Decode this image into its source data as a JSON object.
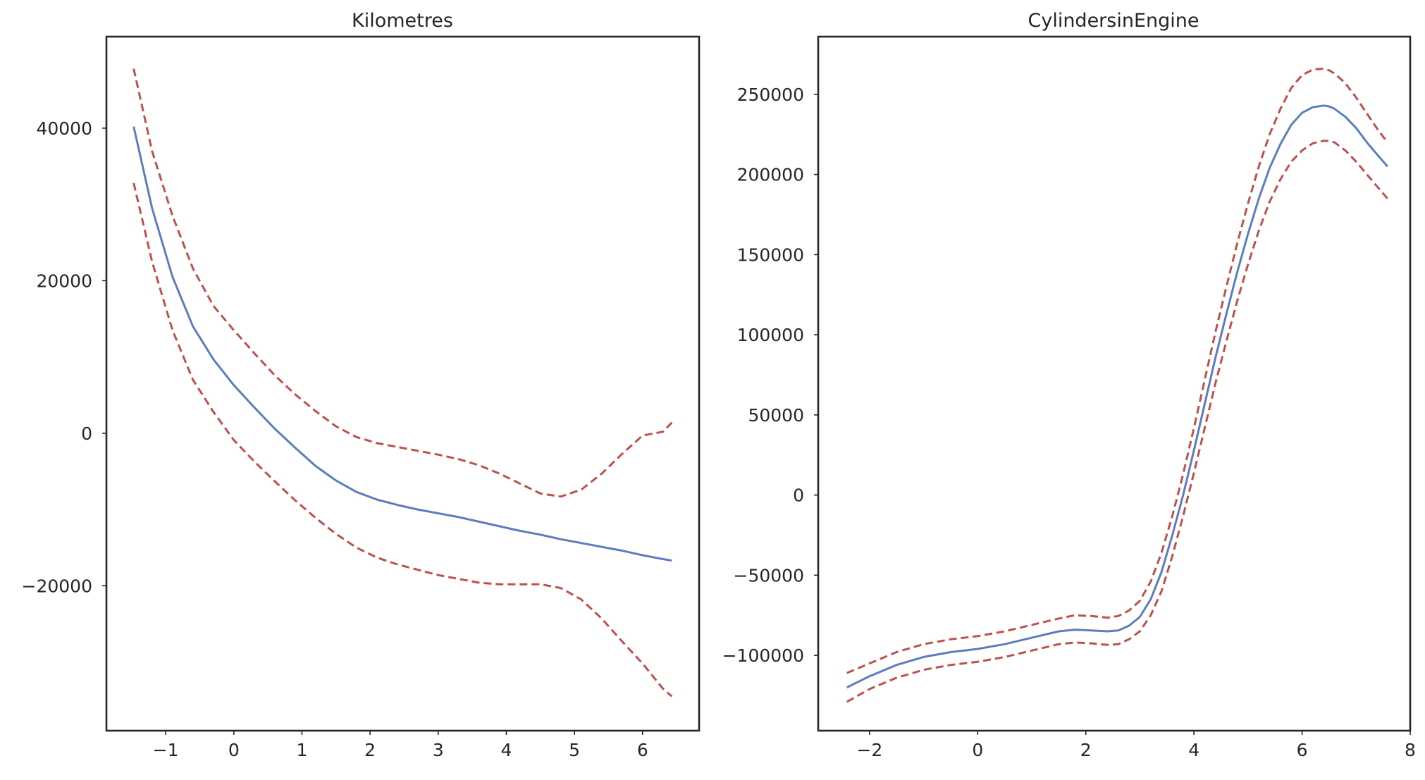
{
  "figure": {
    "fit_color": "#5c7dbf",
    "ci_color": "#c0504d"
  },
  "chart_data": [
    {
      "type": "line",
      "title": "Kilometres",
      "xlabel": "",
      "ylabel": "",
      "xlim": [
        -1.87,
        6.83
      ],
      "ylim": [
        -39000,
        52000
      ],
      "xticks": [
        -1,
        0,
        1,
        2,
        3,
        4,
        5,
        6
      ],
      "yticks": [
        -20000,
        0,
        20000,
        40000
      ],
      "xtick_labels": [
        "−1",
        "0",
        "1",
        "2",
        "3",
        "4",
        "5",
        "6"
      ],
      "ytick_labels": [
        "−20000",
        "0",
        "20000",
        "40000"
      ],
      "grid": false,
      "x": [
        -1.47,
        -1.2,
        -0.9,
        -0.6,
        -0.3,
        0.0,
        0.3,
        0.6,
        0.9,
        1.2,
        1.5,
        1.8,
        2.1,
        2.4,
        2.7,
        3.0,
        3.3,
        3.6,
        3.9,
        4.2,
        4.5,
        4.8,
        5.1,
        5.4,
        5.7,
        6.0,
        6.3,
        6.43
      ],
      "series": [
        {
          "role": "fit",
          "values": [
            40200,
            29500,
            20500,
            14000,
            9700,
            6300,
            3400,
            600,
            -1900,
            -4300,
            -6200,
            -7700,
            -8700,
            -9400,
            -10000,
            -10500,
            -11000,
            -11600,
            -12200,
            -12800,
            -13300,
            -13900,
            -14400,
            -14900,
            -15400,
            -16000,
            -16500,
            -16700
          ]
        },
        {
          "role": "upper",
          "values": [
            47800,
            37000,
            28500,
            21600,
            16700,
            13500,
            10500,
            7600,
            5100,
            2900,
            900,
            -500,
            -1300,
            -1800,
            -2300,
            -2800,
            -3400,
            -4200,
            -5300,
            -6600,
            -7900,
            -8300,
            -7400,
            -5300,
            -2700,
            -300,
            200,
            1400
          ]
        },
        {
          "role": "lower",
          "values": [
            32800,
            22500,
            13500,
            7000,
            2800,
            -900,
            -3700,
            -6300,
            -8800,
            -11100,
            -13200,
            -15000,
            -16300,
            -17200,
            -17900,
            -18600,
            -19100,
            -19600,
            -19800,
            -19800,
            -19800,
            -20300,
            -21800,
            -24300,
            -27300,
            -30200,
            -33500,
            -34500
          ]
        }
      ]
    },
    {
      "type": "line",
      "title": "CylindersinEngine",
      "xlabel": "",
      "ylabel": "",
      "xlim": [
        -2.95,
        8.0
      ],
      "ylim": [
        -147000,
        286000
      ],
      "xticks": [
        -2,
        0,
        2,
        4,
        6,
        8
      ],
      "yticks": [
        -100000,
        -50000,
        0,
        50000,
        100000,
        150000,
        200000,
        250000
      ],
      "xtick_labels": [
        "−2",
        "0",
        "2",
        "4",
        "6",
        "8"
      ],
      "ytick_labels": [
        "−100000",
        "−50000",
        "0",
        "50000",
        "100000",
        "150000",
        "200000",
        "250000"
      ],
      "grid": false,
      "x": [
        -2.42,
        -2.0,
        -1.5,
        -1.0,
        -0.5,
        0.0,
        0.5,
        1.0,
        1.5,
        1.8,
        2.1,
        2.4,
        2.6,
        2.8,
        3.0,
        3.2,
        3.4,
        3.6,
        3.8,
        4.0,
        4.2,
        4.4,
        4.6,
        4.8,
        5.0,
        5.2,
        5.4,
        5.6,
        5.8,
        6.0,
        6.2,
        6.4,
        6.5,
        6.6,
        6.8,
        7.0,
        7.2,
        7.4,
        7.58
      ],
      "series": [
        {
          "role": "fit",
          "values": [
            -120000,
            -113000,
            -106000,
            -101000,
            -98000,
            -96000,
            -93000,
            -89000,
            -85000,
            -84000,
            -84500,
            -85000,
            -84500,
            -81500,
            -76000,
            -65000,
            -48000,
            -25000,
            0,
            28000,
            57000,
            86000,
            113000,
            139000,
            163000,
            185000,
            204000,
            219000,
            231000,
            238500,
            242000,
            243000,
            242500,
            241000,
            236000,
            229000,
            220000,
            212000,
            205000
          ]
        },
        {
          "role": "upper",
          "values": [
            -111000,
            -105000,
            -98000,
            -93000,
            -90000,
            -88000,
            -85000,
            -81000,
            -77000,
            -75000,
            -75500,
            -76500,
            -75500,
            -72000,
            -66000,
            -54000,
            -36000,
            -13000,
            13000,
            42000,
            72000,
            102000,
            130000,
            157000,
            182000,
            205000,
            225000,
            241000,
            254000,
            262000,
            265500,
            266000,
            265000,
            263000,
            257000,
            248000,
            238000,
            228000,
            220000
          ]
        },
        {
          "role": "lower",
          "values": [
            -129000,
            -121000,
            -114000,
            -109000,
            -106000,
            -104000,
            -101000,
            -97000,
            -93000,
            -92000,
            -92500,
            -93500,
            -93000,
            -90000,
            -85000,
            -75000,
            -60000,
            -38000,
            -13000,
            14000,
            42000,
            70000,
            96000,
            121000,
            144000,
            165000,
            183000,
            197000,
            208000,
            215000,
            219500,
            221000,
            221000,
            220000,
            215000,
            208000,
            200000,
            192000,
            185000
          ]
        }
      ]
    }
  ]
}
